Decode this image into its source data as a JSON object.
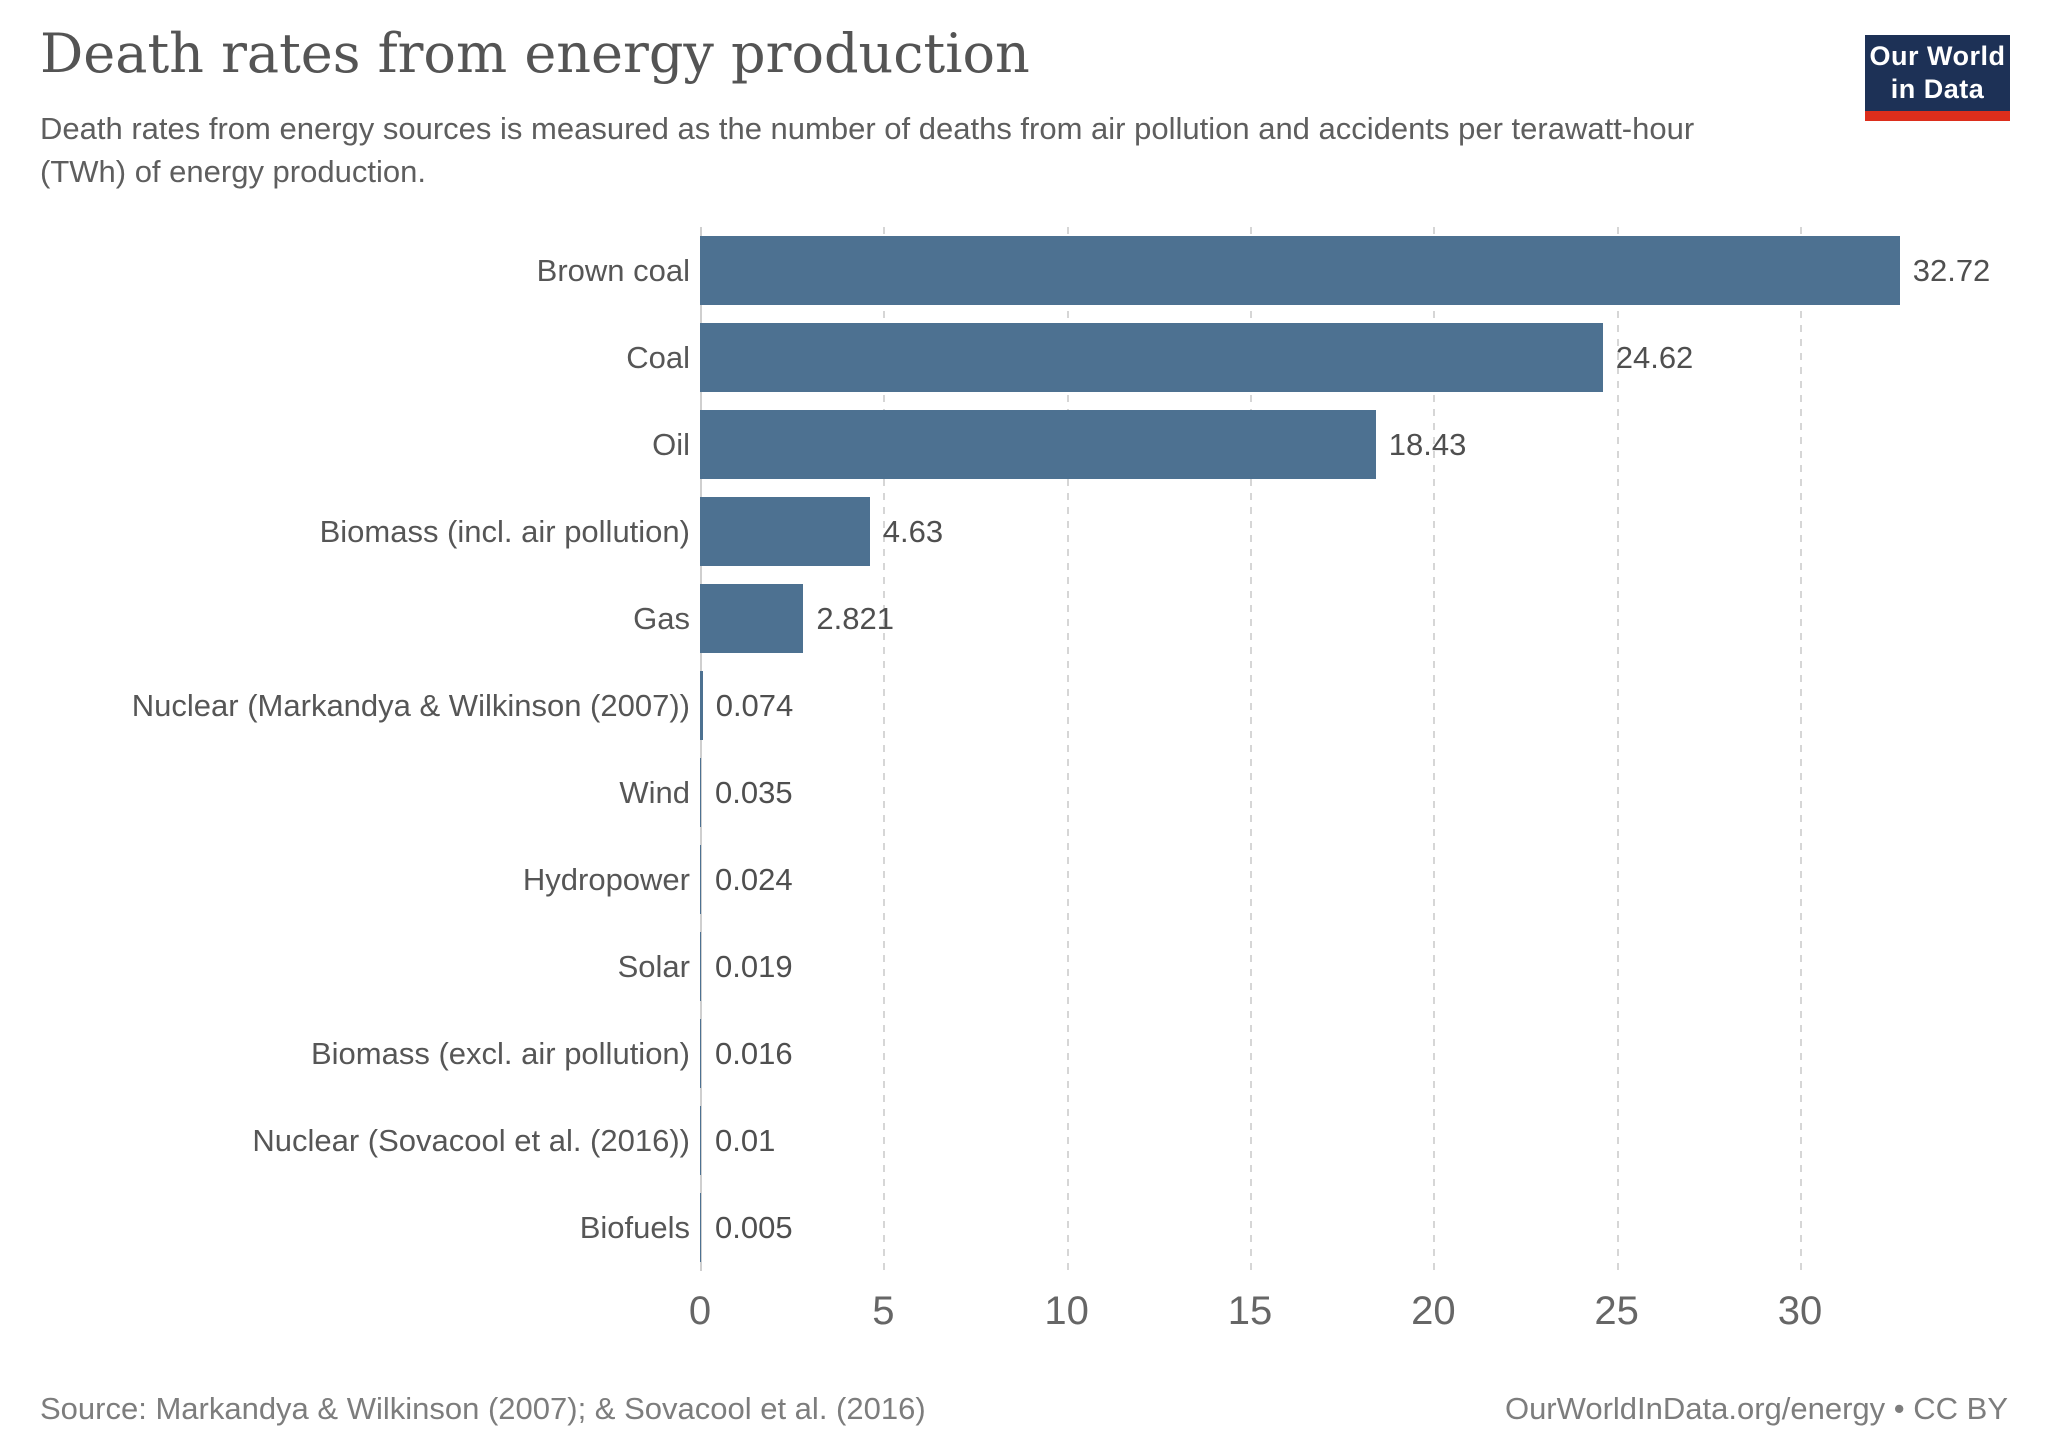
{
  "header": {
    "title": "Death rates from energy production",
    "subtitle": "Death rates from energy sources is measured as the number of deaths from air pollution and accidents per terawatt-hour (TWh) of energy production.",
    "logo": {
      "line1": "Our World",
      "line2": "in Data",
      "bg_color": "#1d3156",
      "accent_color": "#dc2e1c"
    }
  },
  "chart_data": {
    "type": "bar",
    "orientation": "horizontal",
    "title": "Death rates from energy production",
    "xlabel": "",
    "ylabel": "",
    "xlim": [
      0,
      36
    ],
    "x_ticks": [
      0,
      5,
      10,
      15,
      20,
      25,
      30
    ],
    "grid": true,
    "legend": "none",
    "bar_color": "#4d7191",
    "categories": [
      "Brown coal",
      "Coal",
      "Oil",
      "Biomass (incl. air pollution)",
      "Gas",
      "Nuclear (Markandya & Wilkinson (2007))",
      "Wind",
      "Hydropower",
      "Solar",
      "Biomass (excl. air pollution)",
      "Nuclear (Sovacool et al. (2016))",
      "Biofuels"
    ],
    "values": [
      32.72,
      24.62,
      18.43,
      4.63,
      2.821,
      0.074,
      0.035,
      0.024,
      0.019,
      0.016,
      0.01,
      0.005
    ],
    "value_labels": [
      "32.72",
      "24.62",
      "18.43",
      "4.63",
      "2.821",
      "0.074",
      "0.035",
      "0.024",
      "0.019",
      "0.016",
      "0.01",
      "0.005"
    ]
  },
  "footer": {
    "source": "Source: Markandya & Wilkinson (2007); & Sovacool et al. (2016)",
    "link": "OurWorldInData.org/energy • CC BY"
  }
}
